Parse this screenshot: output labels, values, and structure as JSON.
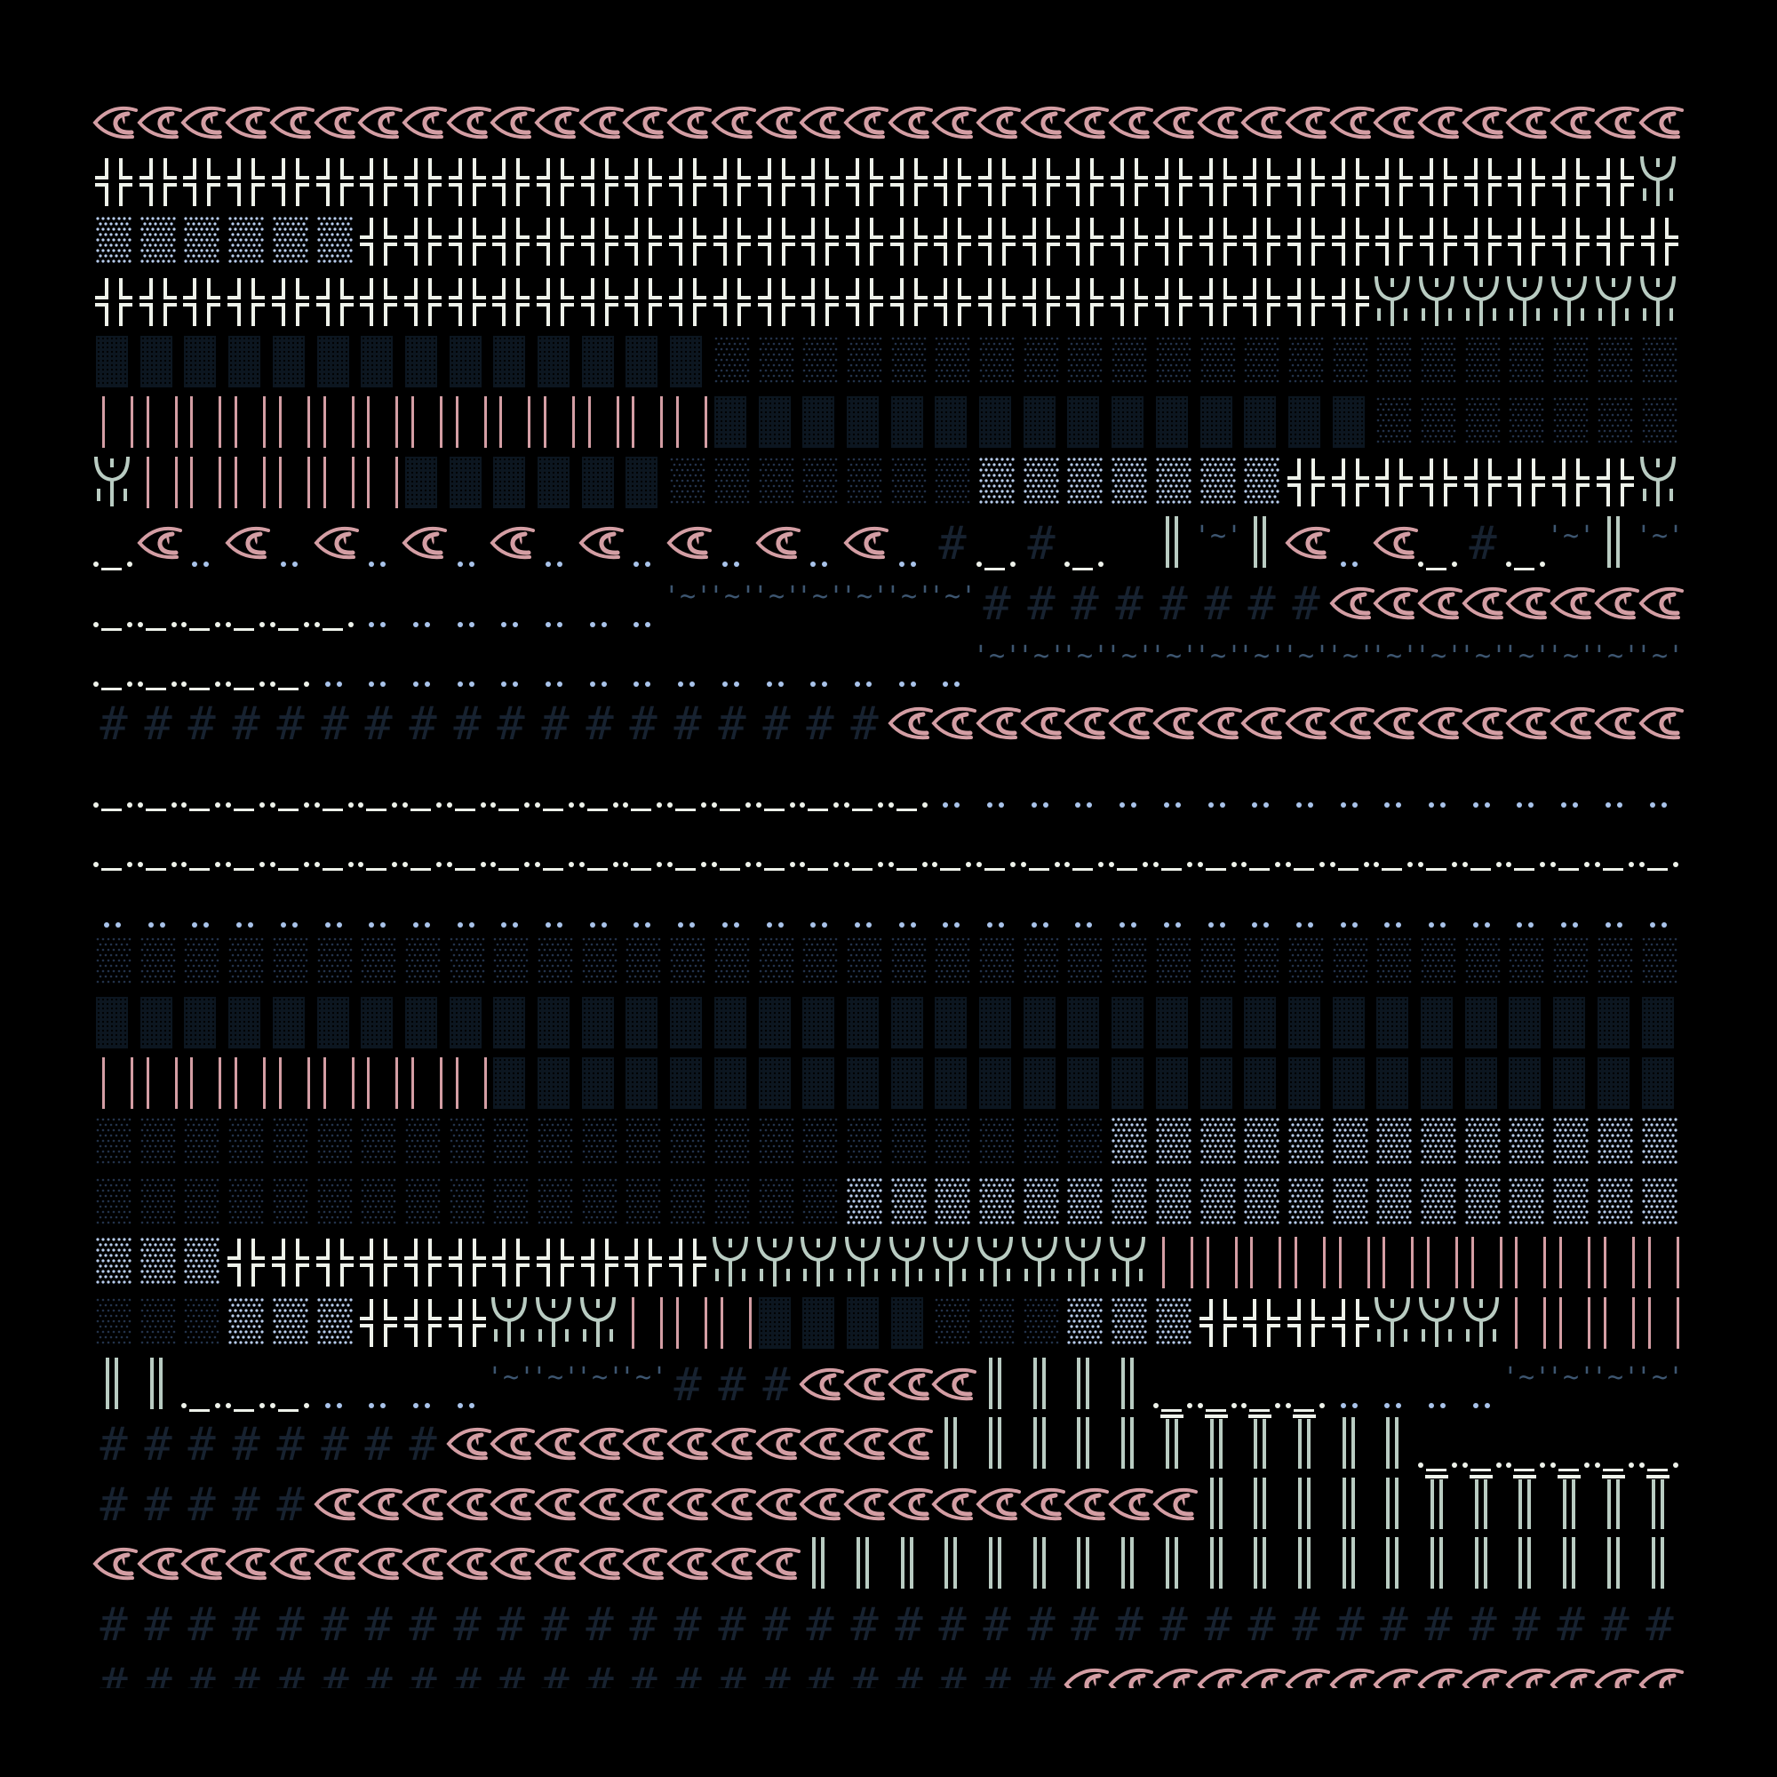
{
  "glyphs": {
    "E": {
      "name": "eye",
      "color": "#d49ea4"
    },
    "X": {
      "name": "double-cross",
      "color": "#eef2ea"
    },
    "L": {
      "name": "light-dot-block",
      "color": "#b8cdee"
    },
    "D": {
      "name": "dark-block",
      "color": "#0c1620"
    },
    "S": {
      "name": "sparse-dot-block",
      "color": "#23324a"
    },
    "P": {
      "name": "pink-bars",
      "color": "#d49ea4"
    },
    "Y": {
      "name": "psi",
      "color": "#b9ccc2"
    },
    "F": {
      "name": "face",
      "color": "#eef2ea"
    },
    "O": {
      "name": "dot-pair",
      "color": "#a9c3ea"
    },
    "H": {
      "name": "hash",
      "color": "#172230",
      "text": "#"
    },
    "T": {
      "name": "tilde",
      "color": "#3d5671",
      "text": "'~'"
    },
    "V": {
      "name": "double-bar",
      "color": "#b9ccc2"
    },
    "N": {
      "name": "bar-with-top",
      "color": "#b9ccc2"
    }
  },
  "rows": [
    "EEEEEEEEEEEEEEEEEEEEEEEEEEEEEEEEEEEE",
    "XXXXXXXXXXXXXXXXXXXXXXXXXXXXXXXXXXXY",
    "LLLLLLXXXXXXXXXXXXXXXXXXXXXXXXXXXXXX",
    "XXXXXXXXXXXXXXXXXXXXXXXXXXXXXYYYYYYY",
    "DDDDDDDDDDDDDDSSSSSSSSSSSSSSSSSSSSSS",
    "PPPPPPPPPPPPPPDDDDDDDDDDDDDDDSSSSSSS",
    "YPPPPPPDDDDDDSSSSSSSLLLLLLLXXXXXXXXY",
    "FEOEOEOEOEOEOEOEOEOHFHF VTVEOEFHFTVT",
    "FFFFFFOOOOOOOTTTTTTTHHHHHHHHEEEEEEEE",
    "FFFFFOOOOOOOOOOOOOOOTTTTTTTTTTTTTTTT",
    "HHHHHHHHHHHHHHHHHHEEEEEEEEEEEEEEEEEE",
    "FFFFFFFFFFFFFFFFFFFOOOOOOOOOOOOOOOOO",
    "FFFFFFFFFFFFFFFFFFFFFFFFFFFFFFFFFFFF",
    "OOOOOOOOOOOOOOOOOOOOOOOOOOOOOOOOOOOO",
    "SSSSSSSSSSSSSSSSSSSSSSSSSSSSSSSSSSSS",
    "DDDDDDDDDDDDDDDDDDDDDDDDDDDDDDDDDDDD",
    "PPPPPPPPPDDDDDDDDDDDDDDDDDDDDDDDDDDD",
    "SSSSSSSSSSSSSSSSSSSSSSSLLLLLLLLLLLLL",
    "SSSSSSSSSSSSSSSSSLLLLLLLLLLLLLLLLLLL",
    "LLLXXXXXXXXXXXYYYYYYYYYYPPPPPPPPPPPP",
    "SSSLLLXXXYYYPPPDDDDSSSLLLXXXXYYYPPPP",
    "VVFFFOOOOTTTTHHHEEEEVVVVFFFFOOOOTTTT",
    "HHHHHHHHEEEEEEEEEEEVVVVVNNNNVVFFFFFF",
    "HHHHHEEEEEEEEEEEEEEEEEEEEVVVVVNNNNNN",
    "EEEEEEEEEEEEEEEEVVVVVVVVVVVVVVVVVVVV",
    "HHHHHHHHHHHHHHHHHHHHHHHHHHHHHHHHHHHH",
    "HHHHHHHHHHHHHHHHHHHHHHEEEEEEEEEEEEEE"
  ]
}
